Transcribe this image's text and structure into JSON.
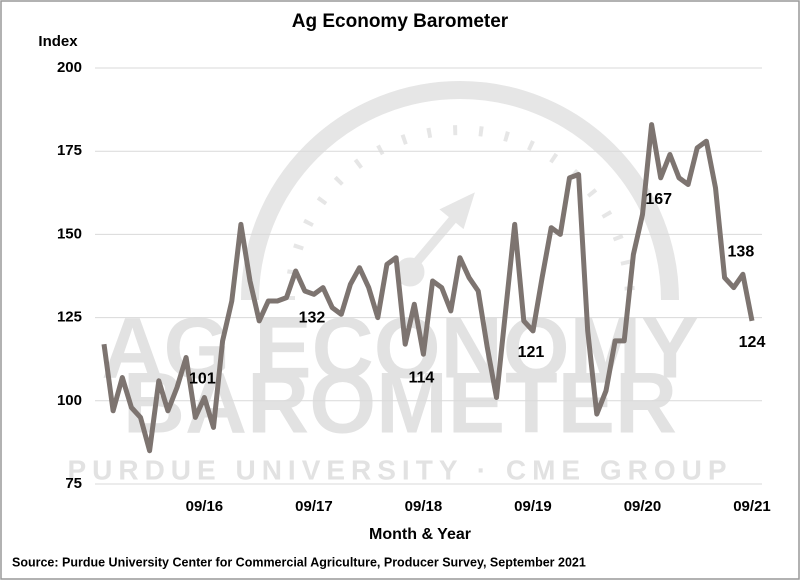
{
  "chart_data": {
    "type": "line",
    "title": "Ag Economy Barometer",
    "y_label": "Index",
    "x_label": "Month & Year",
    "source": "Source: Purdue University Center for Commercial Agriculture, Producer Survey, September 2021",
    "watermark": [
      "AG ECONOMY",
      "BAROMETER",
      "PURDUE UNIVERSITY · CME GROUP"
    ],
    "categories": [
      null,
      null,
      null,
      null,
      null,
      null,
      null,
      null,
      null,
      null,
      null,
      "09/16",
      null,
      null,
      null,
      null,
      null,
      null,
      null,
      null,
      null,
      null,
      null,
      "09/17",
      null,
      null,
      null,
      null,
      null,
      null,
      null,
      null,
      null,
      null,
      null,
      "09/18",
      null,
      null,
      null,
      null,
      null,
      null,
      null,
      null,
      null,
      null,
      null,
      "09/19",
      null,
      null,
      null,
      null,
      null,
      null,
      null,
      null,
      null,
      null,
      null,
      "09/20",
      null,
      null,
      null,
      null,
      null,
      null,
      null,
      null,
      null,
      null,
      null,
      "09/21"
    ],
    "series": [
      {
        "name": "Ag Economy Barometer",
        "color": "#7d7470",
        "values": [
          117,
          97,
          107,
          98,
          95,
          85,
          106,
          97,
          104,
          113,
          95,
          101,
          92,
          118,
          130,
          153,
          136,
          124,
          130,
          130,
          131,
          139,
          133,
          132,
          134,
          128,
          126,
          135,
          140,
          134,
          125,
          141,
          143,
          117,
          129,
          114,
          136,
          134,
          127,
          143,
          137,
          133,
          116,
          101,
          127,
          153,
          124,
          121,
          137,
          152,
          150,
          167,
          168,
          121,
          96,
          103,
          118,
          118,
          144,
          156,
          183,
          167,
          174,
          167,
          165,
          176,
          178,
          164,
          137,
          134,
          138,
          124
        ],
        "value_labels": [
          null,
          null,
          null,
          null,
          null,
          null,
          null,
          null,
          null,
          null,
          null,
          "101",
          null,
          null,
          null,
          null,
          null,
          null,
          null,
          null,
          null,
          null,
          null,
          "132",
          null,
          null,
          null,
          null,
          null,
          null,
          null,
          null,
          null,
          null,
          null,
          "114",
          null,
          null,
          null,
          null,
          null,
          null,
          null,
          null,
          null,
          null,
          null,
          "121",
          null,
          null,
          null,
          null,
          null,
          null,
          null,
          null,
          null,
          null,
          null,
          null,
          null,
          "167",
          null,
          null,
          null,
          null,
          null,
          null,
          null,
          null,
          "138",
          "124"
        ]
      }
    ],
    "ylim": [
      75,
      200
    ],
    "yticks": [
      75,
      100,
      125,
      150,
      175,
      200
    ],
    "grid": true
  }
}
